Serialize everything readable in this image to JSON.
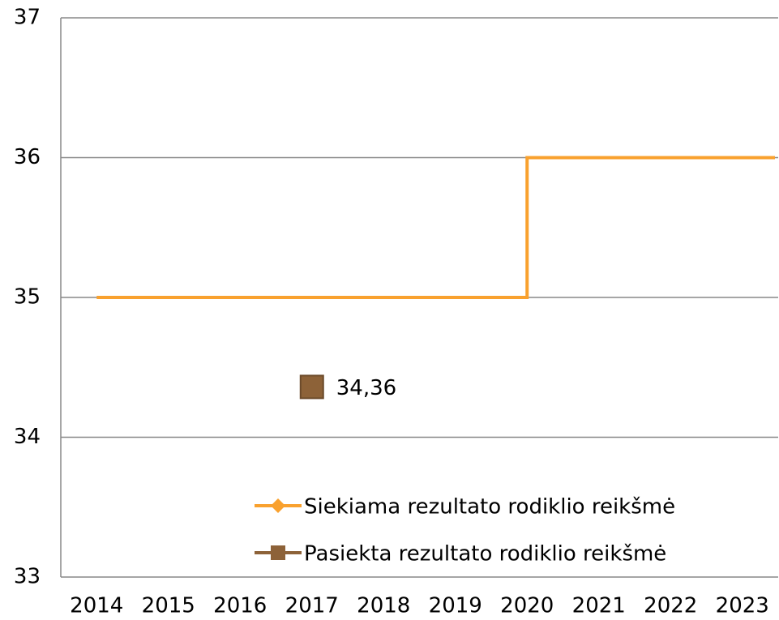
{
  "chart_data": {
    "type": "line",
    "categories": [
      "2014",
      "2015",
      "2016",
      "2017",
      "2018",
      "2019",
      "2020",
      "2021",
      "2022",
      "2023"
    ],
    "series": [
      {
        "name": "Siekiama rezultato rodiklio reikšmė",
        "color": "#f9a12e",
        "marker": "diamond",
        "step": "after",
        "values": [
          35,
          35,
          35,
          35,
          35,
          35,
          36,
          36,
          36,
          36
        ]
      },
      {
        "name": "Pasiekta rezultato rodiklio reikšmė",
        "color": "#8d6238",
        "marker": "square",
        "values": [
          null,
          null,
          null,
          34.36,
          null,
          null,
          null,
          null,
          null,
          null
        ],
        "value_labels": [
          null,
          null,
          null,
          "34,36",
          null,
          null,
          null,
          null,
          null,
          null
        ]
      }
    ],
    "ylim": [
      33,
      37
    ],
    "yticks": [
      33,
      34,
      35,
      36,
      37
    ],
    "grid": true,
    "legend": "lower right"
  }
}
